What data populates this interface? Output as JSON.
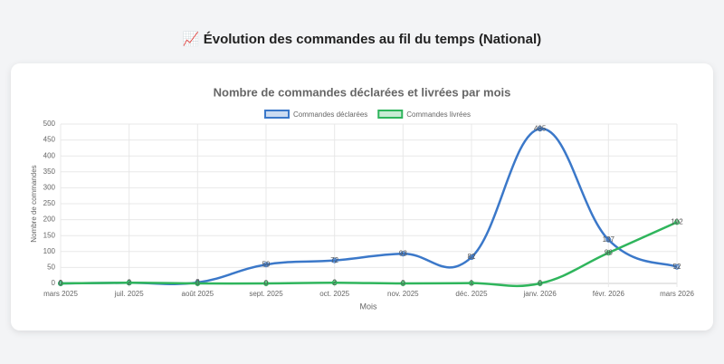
{
  "header": {
    "title": "📈 Évolution des commandes au fil du temps (National)"
  },
  "chart_data": {
    "type": "line",
    "title": "Nombre de commandes déclarées et livrées par mois",
    "x_label": "Mois",
    "y_label": "Nombre de commandes",
    "categories": [
      "mars 2025",
      "juil. 2025",
      "août 2025",
      "sept. 2025",
      "oct. 2025",
      "nov. 2025",
      "déc. 2025",
      "janv. 2026",
      "févr. 2026",
      "mars 2026"
    ],
    "series": [
      {
        "name": "Commandes déclarées",
        "color": "#3b78c9",
        "values": [
          0,
          2,
          3,
          59,
          72,
          93,
          82,
          485,
          137,
          52
        ]
      },
      {
        "name": "Commandes livrées",
        "color": "#2fb55c",
        "values": [
          0,
          2,
          0,
          0,
          2,
          0,
          1,
          0,
          96,
          192
        ]
      }
    ],
    "ylim": [
      0,
      500
    ],
    "yticks": [
      0,
      50,
      100,
      150,
      200,
      250,
      300,
      350,
      400,
      450,
      500
    ],
    "grid": true,
    "legend": "top"
  }
}
